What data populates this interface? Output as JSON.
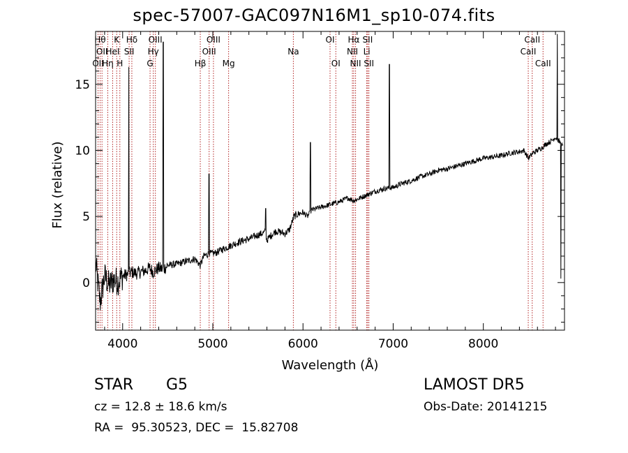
{
  "header": {
    "title": "spec-57007-GAC097N16M1_sp10-074.fits"
  },
  "info": {
    "object_class": "STAR",
    "subclass": "G5",
    "release": "LAMOST DR5",
    "redshift_text": "cz = 12.8 ± 18.6 km/s",
    "obs_date_text": "Obs-Date: 20141215",
    "coords_text": "RA =  95.30523, DEC =  15.82708"
  },
  "chart_data": {
    "type": "line",
    "title": "spec-57007-GAC097N16M1_sp10-074.fits",
    "xlabel": "Wavelength (Å)",
    "ylabel": "Flux (relative)",
    "xlim": [
      3700,
      8900
    ],
    "ylim": [
      -3.6,
      19.0
    ],
    "xticks": [
      4000,
      5000,
      6000,
      7000,
      8000
    ],
    "yticks": [
      0,
      5,
      10,
      15
    ],
    "grid": false,
    "line_color": "#000000",
    "marker_color": "#b22222",
    "series": [
      {
        "x": [
          3700,
          3750,
          3800,
          3850,
          3900,
          3950,
          4000,
          4050,
          4100,
          4150,
          4200,
          4250,
          4300,
          4340,
          4400,
          4450,
          4500,
          4600,
          4700,
          4800,
          4861,
          4900,
          4960,
          5000,
          5050,
          5100,
          5200,
          5300,
          5400,
          5500,
          5580,
          5600,
          5650,
          5700,
          5750,
          5800,
          5850,
          5900,
          5950,
          6000,
          6050,
          6100,
          6200,
          6300,
          6400,
          6500,
          6563,
          6600,
          6700,
          6800,
          6900,
          7000,
          7100,
          7200,
          7300,
          7400,
          7500,
          7600,
          7700,
          7800,
          7900,
          8000,
          8100,
          8200,
          8300,
          8400,
          8450,
          8500,
          8550,
          8600,
          8650,
          8700,
          8750,
          8800,
          8850,
          8880
        ],
        "y": [
          1.5,
          -1.5,
          0.5,
          -0.2,
          0.2,
          0.1,
          0.5,
          0.6,
          0.8,
          0.7,
          0.8,
          0.9,
          1.1,
          0.8,
          1.1,
          1.0,
          1.3,
          1.4,
          1.6,
          1.8,
          1.3,
          2.0,
          2.2,
          2.2,
          2.3,
          2.5,
          2.8,
          3.1,
          3.3,
          3.6,
          3.8,
          3.2,
          3.6,
          3.9,
          3.8,
          3.7,
          4.0,
          5.0,
          5.2,
          5.3,
          5.0,
          5.5,
          5.7,
          5.9,
          6.1,
          6.4,
          6.2,
          6.3,
          6.6,
          6.9,
          7.1,
          7.2,
          7.5,
          7.7,
          8.0,
          8.2,
          8.5,
          8.6,
          8.8,
          9.0,
          9.2,
          9.4,
          9.5,
          9.6,
          9.8,
          9.9,
          10.0,
          9.4,
          9.8,
          10.0,
          10.2,
          10.5,
          10.7,
          11.0,
          10.6,
          10.3
        ],
        "spikes": [
          {
            "x": 4068,
            "y": 16.3
          },
          {
            "x": 4450,
            "y": 18.2
          },
          {
            "x": 4959,
            "y": 8.2
          },
          {
            "x": 5585,
            "y": 5.6
          },
          {
            "x": 6083,
            "y": 10.6
          },
          {
            "x": 6958,
            "y": 16.5
          },
          {
            "x": 8820,
            "y": 18.8
          },
          {
            "x": 8860,
            "y": 0.3
          }
        ]
      }
    ],
    "lines": [
      {
        "x": 3727,
        "label": "OII",
        "row": 2
      },
      {
        "x": 3750,
        "label": "Hθ",
        "row": 0
      },
      {
        "x": 3771,
        "label": "OII",
        "row": 1
      },
      {
        "x": 3835,
        "label": "Hη",
        "row": 2
      },
      {
        "x": 3889,
        "label": "HeI",
        "row": 1
      },
      {
        "x": 3934,
        "label": "K",
        "row": 0
      },
      {
        "x": 3969,
        "label": "H",
        "row": 2
      },
      {
        "x": 4072,
        "label": "SII",
        "row": 1
      },
      {
        "x": 4102,
        "label": "Hδ",
        "row": 0
      },
      {
        "x": 4304,
        "label": "G",
        "row": 2
      },
      {
        "x": 4340,
        "label": "Hγ",
        "row": 1
      },
      {
        "x": 4363,
        "label": "OIII",
        "row": 0
      },
      {
        "x": 4861,
        "label": "Hβ",
        "row": 2
      },
      {
        "x": 4959,
        "label": "OIII",
        "row": 1
      },
      {
        "x": 5007,
        "label": "OIII",
        "row": 0
      },
      {
        "x": 5175,
        "label": "Mg",
        "row": 2
      },
      {
        "x": 5893,
        "label": "Na",
        "row": 1
      },
      {
        "x": 6300,
        "label": "OI",
        "row": 0
      },
      {
        "x": 6364,
        "label": "OI",
        "row": 2
      },
      {
        "x": 6548,
        "label": "NII",
        "row": 1
      },
      {
        "x": 6563,
        "label": "Hα",
        "row": 0
      },
      {
        "x": 6583,
        "label": "NII",
        "row": 2
      },
      {
        "x": 6707,
        "label": "Li",
        "row": 1
      },
      {
        "x": 6717,
        "label": "SII",
        "row": 0
      },
      {
        "x": 6731,
        "label": "SII",
        "row": 2
      },
      {
        "x": 8498,
        "label": "CaII",
        "row": 1
      },
      {
        "x": 8542,
        "label": "CaII",
        "row": 0
      },
      {
        "x": 8662,
        "label": "CaII",
        "row": 2
      }
    ]
  }
}
